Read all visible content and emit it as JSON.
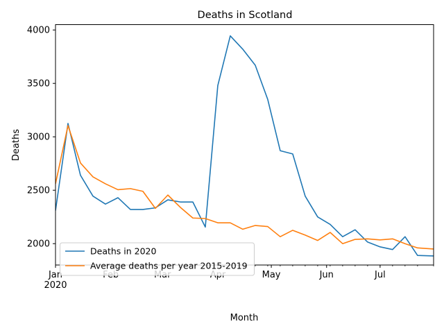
{
  "chart_data": {
    "type": "line",
    "title": "Deaths in Scotland",
    "xlabel": "Month",
    "ylabel": "Deaths",
    "x_start": "2020-01-01",
    "x_end": "2020-07-31",
    "ylim": [
      1800,
      4050
    ],
    "yticks": [
      2000,
      2500,
      3000,
      3500,
      4000
    ],
    "ytick_labels": [
      "2000",
      "2500",
      "3000",
      "3500",
      "4000"
    ],
    "xticks": [
      {
        "date": "2020-01-01",
        "label": "Jan",
        "sublabel": "2020"
      },
      {
        "date": "2020-02-01",
        "label": "Feb",
        "sublabel": ""
      },
      {
        "date": "2020-03-01",
        "label": "Mar",
        "sublabel": ""
      },
      {
        "date": "2020-04-01",
        "label": "Apr",
        "sublabel": ""
      },
      {
        "date": "2020-05-01",
        "label": "May",
        "sublabel": ""
      },
      {
        "date": "2020-06-01",
        "label": "Jun",
        "sublabel": ""
      },
      {
        "date": "2020-07-01",
        "label": "Jul",
        "sublabel": ""
      }
    ],
    "x": [
      "2020-01-01",
      "2020-01-08",
      "2020-01-15",
      "2020-01-22",
      "2020-01-29",
      "2020-02-05",
      "2020-02-12",
      "2020-02-19",
      "2020-02-26",
      "2020-03-04",
      "2020-03-11",
      "2020-03-18",
      "2020-03-25",
      "2020-04-01",
      "2020-04-08",
      "2020-04-15",
      "2020-04-22",
      "2020-04-29",
      "2020-05-06",
      "2020-05-13",
      "2020-05-20",
      "2020-05-27",
      "2020-06-03",
      "2020-06-10",
      "2020-06-17",
      "2020-06-24",
      "2020-07-01",
      "2020-07-08",
      "2020-07-15",
      "2020-07-22",
      "2020-07-31"
    ],
    "series": [
      {
        "name": "Deaths in 2020",
        "color": "#1f77b4",
        "values": [
          2310,
          3125,
          2640,
          2445,
          2370,
          2430,
          2320,
          2320,
          2335,
          2410,
          2390,
          2390,
          2155,
          3480,
          3945,
          3820,
          3670,
          3350,
          2870,
          2840,
          2445,
          2250,
          2180,
          2065,
          2130,
          2015,
          1970,
          1945,
          2065,
          1890,
          1885
        ]
      },
      {
        "name": "Average deaths per year 2015-2019",
        "color": "#ff7f0e",
        "values": [
          2560,
          3105,
          2755,
          2625,
          2560,
          2505,
          2515,
          2490,
          2330,
          2455,
          2340,
          2240,
          2235,
          2195,
          2195,
          2135,
          2170,
          2160,
          2065,
          2125,
          2080,
          2030,
          2105,
          2000,
          2040,
          2045,
          2035,
          2045,
          2000,
          1960,
          1950
        ]
      }
    ],
    "grid": false,
    "legend": "lower-left"
  }
}
